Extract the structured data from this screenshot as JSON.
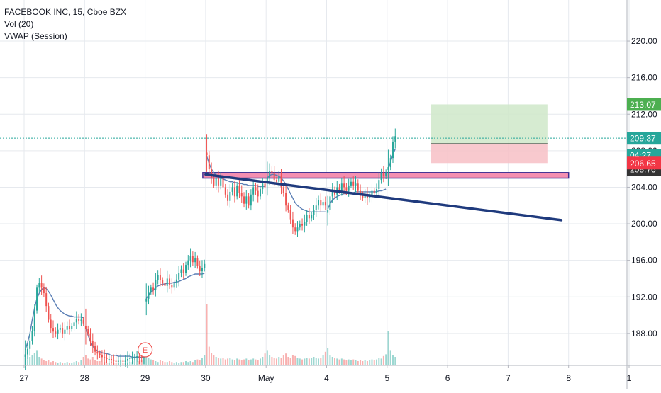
{
  "legend": {
    "symbol_line": "FACEBOOK INC, 15, Cboe BZX",
    "volume_line": "Vol (20)",
    "vwap_line": "VWAP (Session)"
  },
  "colors": {
    "up": "#26a69a",
    "down": "#ef5350",
    "vwap": "#5b7fb5",
    "trendline": "#1f3a7d",
    "zone_fill": "#f48fb1",
    "zone_border": "#3b2a8f",
    "target_fill": "#cfe8c9",
    "stop_fill": "#f7c0c6",
    "price_tag": "#26a69a",
    "target_tag": "#4caf50",
    "stop_tag": "#f23645",
    "entry_tag": "#333333"
  },
  "chart_data": {
    "type": "candlestick",
    "symbol": "FACEBOOK INC",
    "interval": "15",
    "exchange": "Cboe BZX",
    "ylim": [
      184.5,
      224.5
    ],
    "y_ticks": [
      188.0,
      192.0,
      196.0,
      200.0,
      204.0,
      208.0,
      212.0,
      216.0,
      220.0
    ],
    "y_tick_labels": [
      "188.00",
      "192.00",
      "196.00",
      "200.00",
      "204.00",
      "208.00",
      "212.00",
      "216.00",
      "220.00"
    ],
    "x_ticks": [
      {
        "session": 0,
        "label": "27"
      },
      {
        "session": 1,
        "label": "28"
      },
      {
        "session": 2,
        "label": "29"
      },
      {
        "session": 3,
        "label": "30"
      },
      {
        "session": 4,
        "label": "May"
      },
      {
        "session": 5,
        "label": "4"
      },
      {
        "session": 6,
        "label": "5"
      },
      {
        "session": 7,
        "label": "6"
      },
      {
        "session": 8,
        "label": "7"
      },
      {
        "session": 9,
        "label": "8"
      },
      {
        "session": 10,
        "label": "1"
      }
    ],
    "sessions": [
      {
        "label": "27",
        "path": [
          185.7,
          186.3,
          187.2,
          188.3,
          190.5,
          193.0,
          193.5,
          193.0,
          192.4,
          191.0,
          189.5,
          188.6,
          188.2,
          188.0,
          188.4,
          188.6,
          188.0,
          188.4,
          188.8,
          188.5,
          188.8,
          189.2,
          189.6,
          189.4,
          189.5,
          189.1
        ]
      },
      {
        "label": "28",
        "path": [
          188.5,
          188.0,
          187.2,
          186.6,
          186.0,
          185.8,
          185.6,
          185.4,
          185.3,
          185.2,
          185.2,
          185.1,
          185.0,
          184.9,
          185.0,
          185.0,
          184.9,
          185.0,
          185.2,
          185.3,
          185.3,
          185.4,
          185.5,
          185.4,
          185.3,
          185.4
        ]
      },
      {
        "label": "29",
        "path": [
          191.8,
          192.5,
          193.0,
          192.8,
          193.8,
          194.4,
          193.8,
          193.5,
          193.2,
          194.0,
          193.3,
          193.0,
          193.5,
          193.9,
          194.6,
          195.0,
          194.6,
          195.5,
          196.0,
          196.5,
          195.8,
          196.2,
          195.4,
          194.8,
          195.2,
          195.6
        ]
      },
      {
        "label": "30",
        "path": [
          207.5,
          206.0,
          205.0,
          204.2,
          205.0,
          204.2,
          205.2,
          204.0,
          203.2,
          202.5,
          203.5,
          204.0,
          203.0,
          204.2,
          203.4,
          203.0,
          202.2,
          203.0,
          202.0,
          203.2,
          204.0,
          203.6,
          203.0,
          203.8,
          204.4,
          204.0
        ]
      },
      {
        "label": "May",
        "path": [
          205.0,
          205.8,
          205.6,
          204.8,
          204.6,
          205.2,
          204.0,
          203.4,
          202.0,
          201.5,
          200.5,
          199.6,
          199.2,
          199.6,
          200.0,
          199.8,
          200.2,
          201.0,
          200.6,
          201.0,
          201.5,
          202.0,
          202.6,
          202.0,
          202.4,
          202.0
        ]
      },
      {
        "label": "4",
        "path": [
          201.5,
          203.0,
          203.6,
          203.2,
          204.0,
          203.6,
          204.4,
          204.0,
          203.6,
          204.2,
          204.6,
          204.2,
          204.4,
          203.6,
          203.2,
          202.8,
          203.2,
          202.8,
          203.0,
          203.6,
          203.4,
          203.8,
          204.8,
          205.6,
          205.2,
          205.6
        ]
      },
      {
        "label": "5",
        "path": [
          206.2,
          207.2,
          209.0,
          209.6
        ]
      }
    ],
    "vwap": [
      {
        "session": "27",
        "values": [
          186.2,
          187.0,
          188.0,
          189.5,
          190.8,
          191.8,
          192.4,
          192.8,
          193.0,
          192.9,
          192.6,
          192.2,
          191.7,
          191.2,
          190.8,
          190.5,
          190.3,
          190.1,
          190.0,
          189.9,
          189.9,
          189.8,
          189.8,
          189.8,
          189.8,
          189.7
        ]
      },
      {
        "session": "28",
        "values": [
          188.5,
          187.8,
          187.1,
          186.6,
          186.3,
          186.1,
          186.0,
          185.9,
          185.8,
          185.8,
          185.7,
          185.6,
          185.6,
          185.6,
          185.5,
          185.5,
          185.5,
          185.5,
          185.5,
          185.5,
          185.4,
          185.4,
          185.4,
          185.4,
          185.4,
          185.4
        ]
      },
      {
        "session": "29",
        "values": [
          191.8,
          192.2,
          192.5,
          192.7,
          193.0,
          193.2,
          193.3,
          193.4,
          193.4,
          193.5,
          193.5,
          193.5,
          193.6,
          193.6,
          193.7,
          193.8,
          193.9,
          194.0,
          194.2,
          194.3,
          194.4,
          194.5,
          194.5,
          194.5,
          194.5,
          194.6
        ]
      },
      {
        "session": "30",
        "values": [
          207.4,
          206.6,
          206.0,
          205.6,
          205.3,
          205.1,
          205.0,
          204.9,
          204.8,
          204.7,
          204.6,
          204.6,
          204.5,
          204.5,
          204.4,
          204.4,
          204.3,
          204.3,
          204.2,
          204.2,
          204.2,
          204.2,
          204.1,
          204.1,
          204.1,
          204.1
        ]
      },
      {
        "session": "May",
        "values": [
          205.0,
          205.3,
          205.4,
          205.4,
          205.3,
          205.2,
          205.0,
          204.7,
          204.3,
          203.8,
          203.3,
          202.8,
          202.3,
          202.0,
          201.8,
          201.6,
          201.5,
          201.4,
          201.3,
          201.3,
          201.3,
          201.3,
          201.3,
          201.3,
          201.3,
          201.3
        ]
      },
      {
        "session": "4",
        "values": [
          201.6,
          202.2,
          202.6,
          202.8,
          203.0,
          203.1,
          203.2,
          203.3,
          203.3,
          203.4,
          203.4,
          203.4,
          203.5,
          203.5,
          203.5,
          203.5,
          203.5,
          203.5,
          203.5,
          203.5,
          203.5,
          203.5,
          203.6,
          203.6,
          203.7,
          203.8
        ]
      },
      {
        "session": "5",
        "values": [
          206.0,
          206.8,
          207.6,
          208.2
        ]
      }
    ],
    "volume_profile": [
      {
        "session": "27",
        "values": [
          9,
          7,
          10,
          12,
          15,
          18,
          10,
          8,
          6,
          5,
          6,
          4,
          5,
          4,
          3,
          4,
          3,
          3,
          4,
          3,
          3,
          4,
          5,
          4,
          6,
          10
        ]
      },
      {
        "session": "28",
        "values": [
          12,
          8,
          7,
          10,
          6,
          5,
          5,
          4,
          4,
          3,
          3,
          4,
          3,
          3,
          3,
          4,
          3,
          3,
          3,
          4,
          4,
          5,
          4,
          5,
          6,
          9
        ]
      },
      {
        "session": "29",
        "values": [
          16,
          9,
          7,
          6,
          5,
          4,
          6,
          5,
          4,
          4,
          5,
          4,
          3,
          4,
          3,
          4,
          4,
          5,
          4,
          5,
          4,
          6,
          7,
          6,
          9,
          12
        ]
      },
      {
        "session": "30",
        "values": [
          72,
          22,
          15,
          12,
          10,
          9,
          8,
          9,
          7,
          8,
          9,
          7,
          6,
          8,
          7,
          6,
          7,
          8,
          6,
          7,
          8,
          7,
          6,
          8,
          10,
          14
        ]
      },
      {
        "session": "May",
        "values": [
          18,
          12,
          10,
          9,
          8,
          10,
          9,
          12,
          14,
          10,
          9,
          12,
          11,
          9,
          8,
          7,
          8,
          9,
          8,
          9,
          10,
          9,
          8,
          9,
          12,
          16
        ]
      },
      {
        "session": "4",
        "values": [
          20,
          12,
          10,
          9,
          8,
          7,
          8,
          7,
          6,
          7,
          6,
          7,
          6,
          5,
          6,
          5,
          6,
          5,
          6,
          7,
          6,
          7,
          9,
          8,
          11,
          13
        ]
      },
      {
        "session": "5",
        "values": [
          40,
          18,
          12,
          10
        ]
      }
    ],
    "trendline": {
      "start": {
        "session": 3.0,
        "price": 205.4
      },
      "end": {
        "session": 8.88,
        "price": 200.4
      }
    },
    "resistance_zone": {
      "session_start": 3.0,
      "session_end": 9.0,
      "price_low": 205.0,
      "price_high": 205.6
    },
    "long_position": {
      "session_start": 6.72,
      "session_end": 8.65,
      "entry": 208.76,
      "target": 213.07,
      "stop": 206.65
    },
    "earnings_marker": {
      "session": 2.0,
      "label": "E"
    },
    "price_tags": [
      {
        "label": "213.07",
        "value": 213.07,
        "role": "target"
      },
      {
        "label": "209.37",
        "value": 209.37,
        "role": "last"
      },
      {
        "label": "04:27",
        "value": 207.2,
        "role": "countdown"
      },
      {
        "label": "208.76",
        "value": 208.76,
        "role": "entry"
      },
      {
        "label": "206.65",
        "value": 206.65,
        "role": "stop"
      }
    ],
    "last_price": 209.37
  }
}
